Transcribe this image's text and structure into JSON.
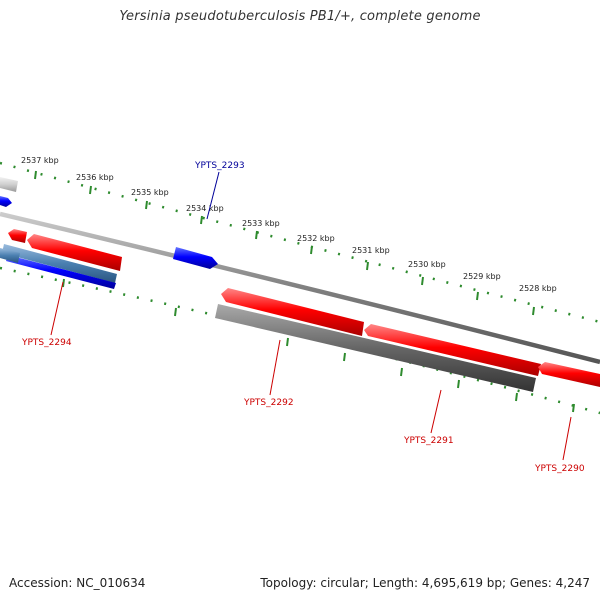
{
  "title": "Yersinia pseudotuberculosis PB1/+, complete genome",
  "footer": {
    "accession": "Accession: NC_010634",
    "stats": "Topology: circular; Length: 4,695,619 bp; Genes: 4,247"
  },
  "scale_labels": [
    "2537 kbp",
    "2536 kbp",
    "2535 kbp",
    "2534 kbp",
    "2533 kbp",
    "2532 kbp",
    "2531 kbp",
    "2530 kbp",
    "2529 kbp",
    "2528 kbp"
  ],
  "gene_labels": {
    "ypts_2293": "YPTS_2293",
    "ypts_2294": "YPTS_2294",
    "ypts_2292": "YPTS_2292",
    "ypts_2291": "YPTS_2291",
    "ypts_2290": "YPTS_2290"
  },
  "colors": {
    "forward_strand": "#ff0000",
    "reverse_strand": "#0000ff",
    "pseudo_gene": "#666666",
    "backbone": "#888888",
    "ticks": "#2e8b2e",
    "label_red": "#cc0000",
    "label_blue": "#000099"
  }
}
